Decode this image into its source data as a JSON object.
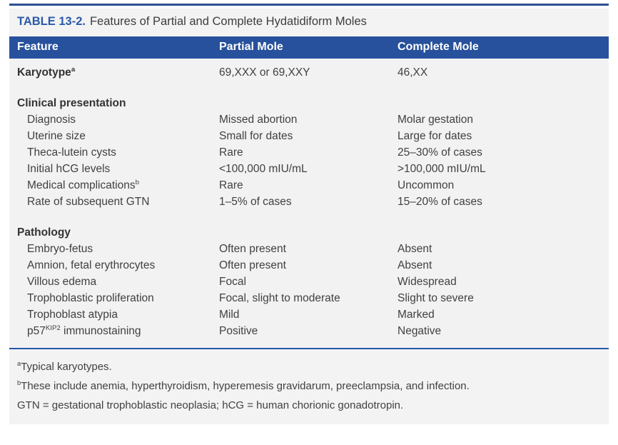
{
  "table": {
    "label": "TABLE 13-2.",
    "title": "Features of Partial and Complete Hydatidiform Moles",
    "columns": [
      "Feature",
      "Partial Mole",
      "Complete Mole"
    ],
    "sections": [
      {
        "heading": null,
        "rows": [
          {
            "feature_parts": [
              {
                "text": "Karyotype"
              },
              {
                "text": "a",
                "sup": true
              }
            ],
            "bold": true,
            "indent": false,
            "partial": "69,XXX or 69,XXY",
            "complete": "46,XX"
          }
        ]
      },
      {
        "heading": "Clinical presentation",
        "rows": [
          {
            "feature_parts": [
              {
                "text": "Diagnosis"
              }
            ],
            "indent": true,
            "partial": "Missed abortion",
            "complete": "Molar gestation"
          },
          {
            "feature_parts": [
              {
                "text": "Uterine size"
              }
            ],
            "indent": true,
            "partial": "Small for dates",
            "complete": "Large for dates"
          },
          {
            "feature_parts": [
              {
                "text": "Theca-lutein cysts"
              }
            ],
            "indent": true,
            "partial": "Rare",
            "complete": "25–30% of cases"
          },
          {
            "feature_parts": [
              {
                "text": "Initial hCG levels"
              }
            ],
            "indent": true,
            "partial": "<100,000 mIU/mL",
            "complete": ">100,000 mIU/mL"
          },
          {
            "feature_parts": [
              {
                "text": "Medical complications"
              },
              {
                "text": "b",
                "sup": true
              }
            ],
            "indent": true,
            "partial": "Rare",
            "complete": "Uncommon"
          },
          {
            "feature_parts": [
              {
                "text": "Rate of subsequent GTN"
              }
            ],
            "indent": true,
            "partial": "1–5% of cases",
            "complete": "15–20% of cases"
          }
        ]
      },
      {
        "heading": "Pathology",
        "rows": [
          {
            "feature_parts": [
              {
                "text": "Embryo-fetus"
              }
            ],
            "indent": true,
            "partial": "Often present",
            "complete": "Absent"
          },
          {
            "feature_parts": [
              {
                "text": "Amnion, fetal erythrocytes"
              }
            ],
            "indent": true,
            "partial": "Often present",
            "complete": "Absent"
          },
          {
            "feature_parts": [
              {
                "text": "Villous edema"
              }
            ],
            "indent": true,
            "partial": "Focal",
            "complete": "Widespread"
          },
          {
            "feature_parts": [
              {
                "text": "Trophoblastic proliferation"
              }
            ],
            "indent": true,
            "partial": "Focal, slight to moderate",
            "complete": "Slight to severe"
          },
          {
            "feature_parts": [
              {
                "text": "Trophoblast atypia"
              }
            ],
            "indent": true,
            "partial": "Mild",
            "complete": "Marked"
          },
          {
            "feature_parts": [
              {
                "text": "p57"
              },
              {
                "text": "KIP2",
                "sup": true
              },
              {
                "text": " immunostaining"
              }
            ],
            "indent": true,
            "partial": "Positive",
            "complete": "Negative"
          }
        ]
      }
    ],
    "footnotes": [
      {
        "sup": "a",
        "text": "Typical karyotypes."
      },
      {
        "sup": "b",
        "text": "These include anemia, hyperthyroidism, hyperemesis gravidarum, preeclampsia, and infection."
      },
      {
        "sup": "",
        "text": "GTN = gestational trophoblastic neoplasia; hCG = human chorionic gonadotropin."
      }
    ],
    "colors": {
      "header_bg": "#27519c",
      "top_rule": "#2e4f92",
      "divider_rule": "#2457a8",
      "title_label_blue": "#2b5aa7",
      "body_bg": "#f2f2f3",
      "title_bg": "#f3f3f4",
      "text": "#414141"
    }
  }
}
